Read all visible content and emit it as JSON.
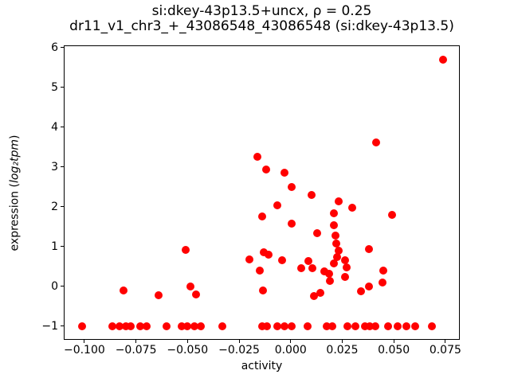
{
  "title": {
    "line1": "si:dkey-43p13.5+uncx, ρ = 0.25",
    "line2": "dr11_v1_chr3_+_43086548_43086548 (si:dkey-43p13.5)"
  },
  "axes": {
    "xlabel": "activity",
    "ylabel_prefix": "expression (",
    "ylabel_math": "log₂tpm",
    "ylabel_suffix": ")"
  },
  "chart_data": {
    "type": "scatter",
    "title": "si:dkey-43p13.5+uncx, ρ = 0.25",
    "subtitle": "dr11_v1_chr3_+_43086548_43086548 (si:dkey-43p13.5)",
    "correlation_rho": 0.25,
    "xlabel": "activity",
    "ylabel": "expression (log2tpm)",
    "xlim": [
      -0.11,
      0.082
    ],
    "ylim": [
      -1.34,
      6.05
    ],
    "grid": false,
    "legend": "none",
    "marker_color": "#ff0000",
    "xticks": [
      {
        "value": -0.1,
        "label": "−0.100"
      },
      {
        "value": -0.075,
        "label": "−0.075"
      },
      {
        "value": -0.05,
        "label": "−0.050"
      },
      {
        "value": -0.025,
        "label": "−0.025"
      },
      {
        "value": 0.0,
        "label": "0.000"
      },
      {
        "value": 0.025,
        "label": "0.025"
      },
      {
        "value": 0.05,
        "label": "0.050"
      },
      {
        "value": 0.075,
        "label": "0.075"
      }
    ],
    "yticks": [
      {
        "value": -1,
        "label": "−1"
      },
      {
        "value": 0,
        "label": "0"
      },
      {
        "value": 1,
        "label": "1"
      },
      {
        "value": 2,
        "label": "2"
      },
      {
        "value": 3,
        "label": "3"
      },
      {
        "value": 4,
        "label": "4"
      },
      {
        "value": 5,
        "label": "5"
      },
      {
        "value": 6,
        "label": "6"
      }
    ],
    "points": [
      [
        0.074,
        5.7
      ],
      [
        0.0415,
        3.62
      ],
      [
        -0.0163,
        3.25
      ],
      [
        -0.0117,
        2.93
      ],
      [
        -0.0031,
        2.85
      ],
      [
        0.0003,
        2.5
      ],
      [
        0.01,
        2.3
      ],
      [
        0.0231,
        2.13
      ],
      [
        -0.0065,
        2.03
      ],
      [
        0.03,
        1.98
      ],
      [
        0.0209,
        1.83
      ],
      [
        0.049,
        1.79
      ],
      [
        -0.014,
        1.75
      ],
      [
        0.0003,
        1.57
      ],
      [
        0.0209,
        1.53
      ],
      [
        0.0129,
        1.33
      ],
      [
        0.0218,
        1.27
      ],
      [
        0.0221,
        1.07
      ],
      [
        0.0234,
        0.9
      ],
      [
        0.0225,
        0.74
      ],
      [
        0.021,
        0.57
      ],
      [
        0.0263,
        0.65
      ],
      [
        0.027,
        0.47
      ],
      [
        0.0265,
        0.23
      ],
      [
        -0.051,
        0.92
      ],
      [
        0.038,
        0.94
      ],
      [
        -0.0132,
        0.85
      ],
      [
        -0.0107,
        0.8
      ],
      [
        -0.02,
        0.68
      ],
      [
        -0.004,
        0.65
      ],
      [
        -0.015,
        0.4
      ],
      [
        -0.0135,
        -0.1
      ],
      [
        0.0087,
        0.63
      ],
      [
        0.0051,
        0.46
      ],
      [
        0.0105,
        0.45
      ],
      [
        0.0165,
        0.38
      ],
      [
        0.0187,
        0.31
      ],
      [
        0.019,
        0.13
      ],
      [
        0.0113,
        -0.25
      ],
      [
        0.0145,
        -0.17
      ],
      [
        0.045,
        0.4
      ],
      [
        0.0445,
        0.1
      ],
      [
        0.038,
        0.0
      ],
      [
        0.034,
        -0.13
      ],
      [
        -0.081,
        -0.1
      ],
      [
        -0.064,
        -0.22
      ],
      [
        -0.0487,
        0.0
      ],
      [
        -0.046,
        -0.2
      ],
      [
        -0.101,
        -1
      ],
      [
        -0.0865,
        -1
      ],
      [
        -0.083,
        -1
      ],
      [
        -0.08,
        -1
      ],
      [
        -0.0775,
        -1
      ],
      [
        -0.0728,
        -1
      ],
      [
        -0.0697,
        -1
      ],
      [
        -0.06,
        -1
      ],
      [
        -0.053,
        -1
      ],
      [
        -0.05,
        -1
      ],
      [
        -0.0465,
        -1
      ],
      [
        -0.0435,
        -1
      ],
      [
        -0.033,
        -1
      ],
      [
        -0.014,
        -1
      ],
      [
        -0.0115,
        -1
      ],
      [
        -0.0066,
        -1
      ],
      [
        -0.0031,
        -1
      ],
      [
        0.0005,
        -1
      ],
      [
        0.0083,
        -1
      ],
      [
        0.0173,
        -1
      ],
      [
        0.02,
        -1
      ],
      [
        0.0277,
        -1
      ],
      [
        0.0312,
        -1
      ],
      [
        0.036,
        -1
      ],
      [
        0.0385,
        -1
      ],
      [
        0.041,
        -1
      ],
      [
        0.0471,
        -1
      ],
      [
        0.052,
        -1
      ],
      [
        0.056,
        -1
      ],
      [
        0.0605,
        -1
      ],
      [
        0.0685,
        -1
      ]
    ]
  }
}
